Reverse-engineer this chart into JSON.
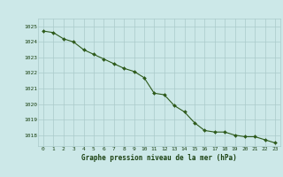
{
  "x": [
    0,
    1,
    2,
    3,
    4,
    5,
    6,
    7,
    8,
    9,
    10,
    11,
    12,
    13,
    14,
    15,
    16,
    17,
    18,
    19,
    20,
    21,
    22,
    23
  ],
  "y": [
    1024.7,
    1024.6,
    1024.2,
    1024.0,
    1023.5,
    1023.2,
    1022.9,
    1022.6,
    1022.3,
    1022.1,
    1021.7,
    1020.7,
    1020.6,
    1019.9,
    1019.5,
    1018.8,
    1018.3,
    1018.2,
    1018.2,
    1018.0,
    1017.9,
    1017.9,
    1017.7,
    1017.5
  ],
  "line_color": "#2d5a1b",
  "marker": "D",
  "marker_size": 2.0,
  "line_width": 0.8,
  "bg_color": "#cce8e8",
  "grid_color": "#aacaca",
  "tick_label_color": "#1a4010",
  "xlabel": "Graphe pression niveau de la mer (hPa)",
  "xlabel_color": "#1a4010",
  "ylim_min": 1017.3,
  "ylim_max": 1025.5,
  "yticks": [
    1018,
    1019,
    1020,
    1021,
    1022,
    1023,
    1024,
    1025
  ],
  "xticks": [
    0,
    1,
    2,
    3,
    4,
    5,
    6,
    7,
    8,
    9,
    10,
    11,
    12,
    13,
    14,
    15,
    16,
    17,
    18,
    19,
    20,
    21,
    22,
    23
  ]
}
